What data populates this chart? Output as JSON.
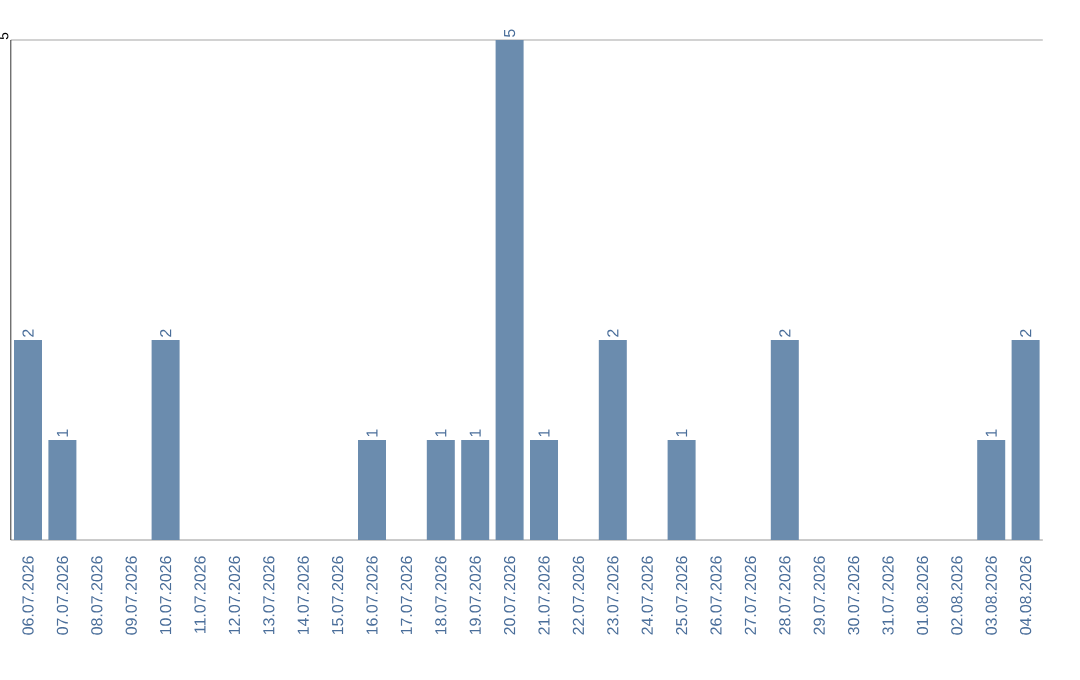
{
  "chart_data": {
    "type": "bar",
    "categories": [
      "06.07.2026",
      "07.07.2026",
      "08.07.2026",
      "09.07.2026",
      "10.07.2026",
      "11.07.2026",
      "12.07.2026",
      "13.07.2026",
      "14.07.2026",
      "15.07.2026",
      "16.07.2026",
      "17.07.2026",
      "18.07.2026",
      "19.07.2026",
      "20.07.2026",
      "21.07.2026",
      "22.07.2026",
      "23.07.2026",
      "24.07.2026",
      "25.07.2026",
      "26.07.2026",
      "27.07.2026",
      "28.07.2026",
      "29.07.2026",
      "30.07.2026",
      "31.07.2026",
      "01.08.2026",
      "02.08.2026",
      "03.08.2026",
      "04.08.2026"
    ],
    "values": [
      2,
      1,
      0,
      0,
      2,
      0,
      0,
      0,
      0,
      0,
      1,
      0,
      1,
      1,
      5,
      1,
      0,
      2,
      0,
      1,
      0,
      0,
      2,
      0,
      0,
      0,
      0,
      0,
      1,
      2
    ],
    "value_labels": [
      "2",
      "1",
      null,
      null,
      "2",
      null,
      null,
      null,
      null,
      null,
      "1",
      null,
      "1",
      "1",
      "5",
      "1",
      null,
      "2",
      null,
      "1",
      null,
      null,
      "2",
      null,
      null,
      null,
      null,
      null,
      "1",
      "2"
    ],
    "color": "#6b8cae",
    "ylim": [
      0,
      5
    ],
    "yticks": [
      {
        "value": 0,
        "label": null
      },
      5
    ],
    "grid": "y"
  }
}
